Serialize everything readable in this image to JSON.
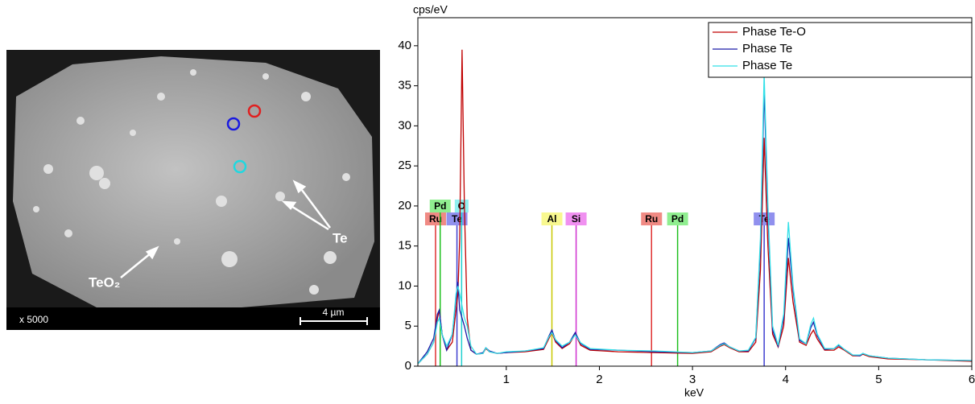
{
  "image": {
    "magnification": "x 5000",
    "scale_bar": "4 µm",
    "label_te": "Te",
    "label_teo2": "TeO₂"
  },
  "chart_data": {
    "type": "line",
    "y_label": "cps/eV",
    "x_label": "keV",
    "xlim": [
      0.05,
      6
    ],
    "ylim": [
      0,
      43.5
    ],
    "xticks": [
      1,
      2,
      3,
      4,
      5,
      6
    ],
    "yticks": [
      0,
      5,
      10,
      15,
      20,
      25,
      30,
      35,
      40
    ],
    "legend": "upper right",
    "x": [
      0.05,
      0.15,
      0.22,
      0.26,
      0.28,
      0.31,
      0.36,
      0.42,
      0.46,
      0.48,
      0.5,
      0.525,
      0.55,
      0.58,
      0.62,
      0.68,
      0.75,
      0.78,
      0.82,
      0.9,
      1.0,
      1.2,
      1.4,
      1.46,
      1.49,
      1.53,
      1.6,
      1.68,
      1.74,
      1.8,
      1.9,
      2.2,
      2.6,
      3.0,
      3.2,
      3.3,
      3.34,
      3.4,
      3.5,
      3.6,
      3.68,
      3.73,
      3.77,
      3.81,
      3.86,
      3.92,
      3.98,
      4.03,
      4.08,
      4.15,
      4.22,
      4.27,
      4.3,
      4.34,
      4.42,
      4.52,
      4.57,
      4.63,
      4.72,
      4.8,
      4.83,
      4.9,
      5.1,
      5.5,
      6.0
    ],
    "series": [
      {
        "name": "Phase Te-O",
        "color": "#c00000",
        "values": [
          0.3,
          1.5,
          3,
          6,
          7,
          4,
          2,
          3,
          7,
          9,
          16,
          39.5,
          20,
          6,
          2,
          1.5,
          1.6,
          2.2,
          1.8,
          1.6,
          1.7,
          1.8,
          2.1,
          3.5,
          4.2,
          3,
          2.2,
          2.8,
          4,
          2.6,
          2,
          1.8,
          1.7,
          1.6,
          1.8,
          2.5,
          2.7,
          2.3,
          1.8,
          1.8,
          3,
          12,
          28.5,
          15,
          4,
          2.4,
          5,
          13.5,
          8,
          3,
          2.6,
          4,
          4.5,
          3.4,
          2,
          2,
          2.4,
          2,
          1.3,
          1.3,
          1.5,
          1.2,
          0.9,
          0.8,
          0.6
        ]
      },
      {
        "name": "Phase Te",
        "color": "#1a1aa8",
        "values": [
          0.3,
          1.8,
          3.5,
          6.5,
          7,
          4,
          2,
          4,
          8.5,
          10.5,
          7,
          6,
          5,
          3.5,
          2,
          1.5,
          1.7,
          2.3,
          1.9,
          1.6,
          1.7,
          1.9,
          2.2,
          3.8,
          4.5,
          3.2,
          2.3,
          3,
          4.2,
          2.8,
          2.1,
          2,
          1.8,
          1.7,
          1.9,
          2.7,
          2.9,
          2.4,
          1.9,
          1.9,
          3.5,
          15,
          34.5,
          19,
          4.5,
          2.5,
          6,
          16,
          9.5,
          3.2,
          2.8,
          4.8,
          5.5,
          3.8,
          2.1,
          2.2,
          2.6,
          2.1,
          1.4,
          1.3,
          1.6,
          1.3,
          1,
          0.8,
          0.7
        ]
      },
      {
        "name": "Phase Te",
        "color": "#33e0e8",
        "values": [
          0.3,
          1.5,
          3,
          5.5,
          6,
          4,
          2.5,
          4,
          9,
          10,
          9,
          7.5,
          6,
          5,
          2.5,
          1.5,
          1.6,
          2.3,
          1.8,
          1.6,
          1.8,
          1.9,
          2.3,
          3.7,
          4.2,
          3.3,
          2.5,
          3,
          3.9,
          2.9,
          2.2,
          2,
          1.9,
          1.7,
          1.9,
          2.6,
          2.8,
          2.4,
          1.9,
          2,
          3.6,
          16,
          36.5,
          20,
          5,
          2.6,
          6.5,
          18,
          10,
          3.4,
          2.8,
          5.2,
          6,
          4,
          2.2,
          2.2,
          2.7,
          2.1,
          1.4,
          1.4,
          1.6,
          1.3,
          1,
          0.8,
          0.7
        ]
      }
    ],
    "element_lines": [
      {
        "name": "Ru",
        "x": 0.24,
        "color": "#e03030",
        "label_color": "#f08a84"
      },
      {
        "name": "Pd",
        "x": 0.29,
        "color": "#20c020",
        "label_color": "#90ee90"
      },
      {
        "name": "Te",
        "x": 0.47,
        "color": "#4040d0",
        "label_color": "#9090ee"
      },
      {
        "name": "O",
        "x": 0.52,
        "color": "#20d0d0",
        "label_color": "#90f0f0"
      },
      {
        "name": "Al",
        "x": 1.49,
        "color": "#c8c800",
        "label_color": "#f8f890"
      },
      {
        "name": "Si",
        "x": 1.75,
        "color": "#d030d0",
        "label_color": "#f090f0"
      },
      {
        "name": "Ru",
        "x": 2.56,
        "color": "#e03030",
        "label_color": "#f08a84"
      },
      {
        "name": "Pd",
        "x": 2.84,
        "color": "#20c020",
        "label_color": "#90ee90"
      },
      {
        "name": "Te",
        "x": 3.77,
        "color": "#4040d0",
        "label_color": "#9090ee"
      }
    ]
  }
}
